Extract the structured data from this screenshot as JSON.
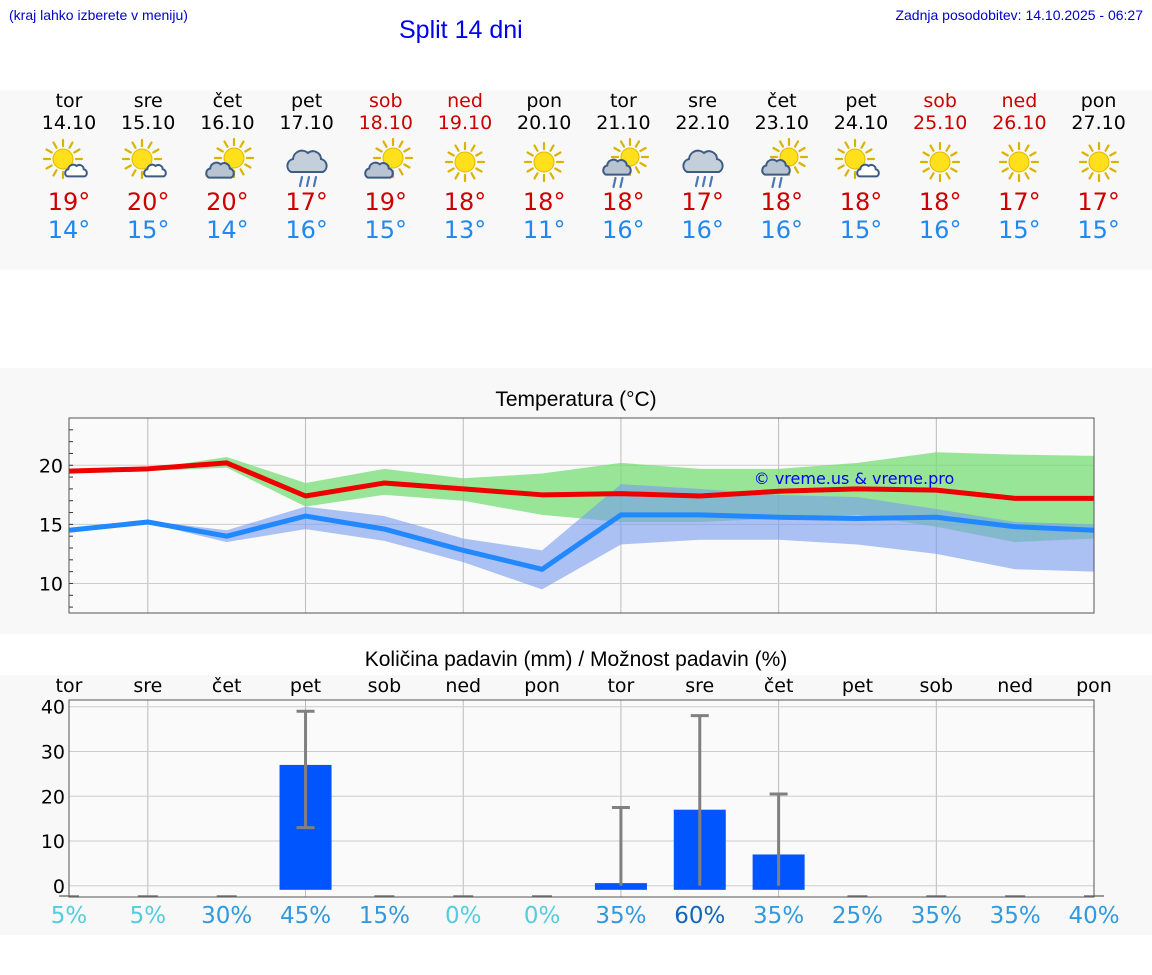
{
  "header": {
    "hint": "(kraj lahko izberete v meniju)",
    "title": "Split 14 dni",
    "updated": "Zadnja posodobitev: 14.10.2025 - 06:27"
  },
  "colors": {
    "weekday": "#000000",
    "weekend": "#cc0000",
    "max_temp": "#cc0000",
    "min_temp": "#2288ee",
    "max_line": "#ee0000",
    "min_line": "#2288ff",
    "max_band": "#77dd77",
    "min_band": "#7799ee",
    "bar": "#0055ff",
    "error_bar": "#808080"
  },
  "days": [
    {
      "day": "tor",
      "date": "14.10",
      "icon": "sun-cloud-icon",
      "max": "19°",
      "min": "14°",
      "weekend": false
    },
    {
      "day": "sre",
      "date": "15.10",
      "icon": "sun-cloud-icon",
      "max": "20°",
      "min": "15°",
      "weekend": false
    },
    {
      "day": "čet",
      "date": "16.10",
      "icon": "sun-behind-cloud-icon",
      "max": "20°",
      "min": "14°",
      "weekend": false
    },
    {
      "day": "pet",
      "date": "17.10",
      "icon": "rain-cloud-icon",
      "max": "17°",
      "min": "16°",
      "weekend": false
    },
    {
      "day": "sob",
      "date": "18.10",
      "icon": "sun-behind-cloud-icon",
      "max": "19°",
      "min": "15°",
      "weekend": true
    },
    {
      "day": "ned",
      "date": "19.10",
      "icon": "sun-icon",
      "max": "18°",
      "min": "13°",
      "weekend": true
    },
    {
      "day": "pon",
      "date": "20.10",
      "icon": "sun-icon",
      "max": "18°",
      "min": "11°",
      "weekend": false
    },
    {
      "day": "tor",
      "date": "21.10",
      "icon": "sun-rain-cloud-icon",
      "max": "18°",
      "min": "16°",
      "weekend": false
    },
    {
      "day": "sre",
      "date": "22.10",
      "icon": "rain-cloud-icon",
      "max": "17°",
      "min": "16°",
      "weekend": false
    },
    {
      "day": "čet",
      "date": "23.10",
      "icon": "sun-rain-cloud-icon",
      "max": "18°",
      "min": "16°",
      "weekend": false
    },
    {
      "day": "pet",
      "date": "24.10",
      "icon": "sun-cloud-icon",
      "max": "18°",
      "min": "15°",
      "weekend": false
    },
    {
      "day": "sob",
      "date": "25.10",
      "icon": "sun-icon",
      "max": "18°",
      "min": "16°",
      "weekend": true
    },
    {
      "day": "ned",
      "date": "26.10",
      "icon": "sun-icon",
      "max": "17°",
      "min": "15°",
      "weekend": true
    },
    {
      "day": "pon",
      "date": "27.10",
      "icon": "sun-icon",
      "max": "17°",
      "min": "15°",
      "weekend": false
    }
  ],
  "chart_data": [
    {
      "type": "line",
      "title": "Temperatura (°C)",
      "xlabel": "",
      "ylabel": "",
      "x": [
        "14.10",
        "15.10",
        "16.10",
        "17.10",
        "18.10",
        "19.10",
        "20.10",
        "21.10",
        "22.10",
        "23.10",
        "24.10",
        "25.10",
        "26.10",
        "27.10"
      ],
      "ylim": [
        7.5,
        24
      ],
      "yticks": [
        10,
        15,
        20
      ],
      "grid": true,
      "watermark": "© vreme.us & vreme.pro",
      "series": [
        {
          "values": [
            19.5,
            19.7,
            20.2,
            17.4,
            18.5,
            18.0,
            17.5,
            17.6,
            17.4,
            17.8,
            18.0,
            17.9,
            17.2,
            17.2
          ],
          "band_low": [
            19.5,
            19.5,
            19.8,
            16.5,
            17.5,
            17.0,
            15.8,
            15.2,
            15.2,
            15.5,
            15.8,
            14.8,
            13.5,
            13.8
          ],
          "band_high": [
            19.5,
            19.7,
            20.7,
            18.5,
            19.7,
            18.9,
            19.3,
            20.2,
            19.7,
            19.7,
            20.2,
            21.1,
            20.9,
            20.8
          ]
        },
        {
          "values": [
            14.5,
            15.2,
            14.0,
            15.7,
            14.6,
            12.8,
            11.2,
            15.8,
            15.8,
            15.6,
            15.5,
            15.6,
            14.8,
            14.5
          ],
          "band_low": [
            14.5,
            15.1,
            13.5,
            14.6,
            13.6,
            11.8,
            9.5,
            13.3,
            13.7,
            13.7,
            13.3,
            12.5,
            11.2,
            11.0
          ],
          "band_high": [
            14.5,
            15.3,
            14.5,
            16.5,
            15.7,
            13.8,
            12.8,
            18.4,
            18.0,
            17.5,
            17.3,
            16.3,
            15.2,
            15.0
          ]
        }
      ]
    },
    {
      "type": "bar",
      "title": "Količina padavin (mm) / Možnost padavin (%)",
      "xlabel": "",
      "ylabel": "",
      "categories": [
        "tor",
        "sre",
        "čet",
        "pet",
        "sob",
        "ned",
        "pon",
        "tor",
        "sre",
        "čet",
        "pet",
        "sob",
        "ned",
        "pon"
      ],
      "ylim": [
        -2.5,
        41.5
      ],
      "yticks": [
        0,
        10,
        20,
        30,
        40
      ],
      "grid": true,
      "values": [
        0,
        0,
        0,
        27,
        0,
        0,
        0,
        0.6,
        17,
        7,
        0,
        0,
        0,
        0
      ],
      "err_low": [
        0,
        0,
        0,
        13,
        0,
        0,
        0,
        0,
        0,
        0,
        0,
        0,
        0,
        0
      ],
      "err_high": [
        0,
        0,
        0,
        39,
        0,
        0,
        0,
        17.5,
        38,
        20.5,
        0,
        0,
        0,
        0
      ],
      "probability": [
        "5%",
        "5%",
        "30%",
        "45%",
        "15%",
        "0%",
        "0%",
        "35%",
        "60%",
        "35%",
        "25%",
        "35%",
        "35%",
        "40%"
      ],
      "probability_colors": [
        "#55ccdd",
        "#55ccdd",
        "#3399dd",
        "#3399dd",
        "#3399dd",
        "#55ccdd",
        "#55ccdd",
        "#3399dd",
        "#1166bb",
        "#3399dd",
        "#3399dd",
        "#3399dd",
        "#3399dd",
        "#3399dd"
      ]
    }
  ]
}
